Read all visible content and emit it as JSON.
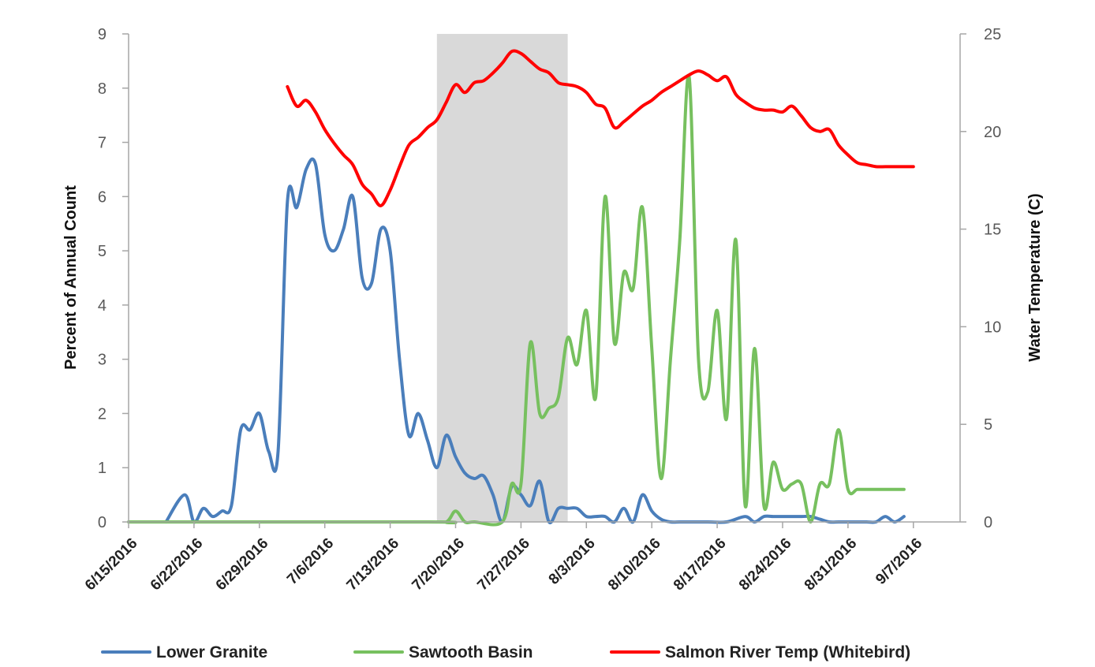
{
  "chart_data": {
    "type": "line",
    "xlabel": "",
    "ylabel_left": "Percent of  Annual Count",
    "ylabel_right": "Water Temperature (C)",
    "ylim_left": [
      0,
      9
    ],
    "ylim_right": [
      0,
      25
    ],
    "xlim": [
      "6/15/2016",
      "9/12/2016"
    ],
    "y_left_ticks": [
      "0",
      "1",
      "2",
      "3",
      "4",
      "5",
      "6",
      "7",
      "8",
      "9"
    ],
    "y_right_ticks": [
      "0",
      "5",
      "10",
      "15",
      "20",
      "25"
    ],
    "x_ticks": [
      "6/15/2016",
      "6/22/2016",
      "6/29/2016",
      "7/6/2016",
      "7/13/2016",
      "7/20/2016",
      "7/27/2016",
      "8/3/2016",
      "8/10/2016",
      "8/17/2016",
      "8/24/2016",
      "8/31/2016",
      "9/7/2016"
    ],
    "grid": false,
    "legend_position": "bottom",
    "shaded_band": {
      "from": "7/18/2016",
      "to": "8/1/2016",
      "color": "#d9d9d9"
    },
    "series": [
      {
        "name": "Lower Granite",
        "color": "#4a7ebb",
        "axis": "left",
        "x": [
          "6/19/2016",
          "6/21/2016",
          "6/22/2016",
          "6/23/2016",
          "6/24/2016",
          "6/25/2016",
          "6/26/2016",
          "6/27/2016",
          "6/28/2016",
          "6/29/2016",
          "6/30/2016",
          "7/1/2016",
          "7/2/2016",
          "7/3/2016",
          "7/4/2016",
          "7/5/2016",
          "7/6/2016",
          "7/7/2016",
          "7/8/2016",
          "7/9/2016",
          "7/10/2016",
          "7/11/2016",
          "7/12/2016",
          "7/13/2016",
          "7/14/2016",
          "7/15/2016",
          "7/16/2016",
          "7/17/2016",
          "7/18/2016",
          "7/19/2016",
          "7/20/2016",
          "7/21/2016",
          "7/22/2016",
          "7/23/2016",
          "7/24/2016",
          "7/25/2016",
          "7/26/2016",
          "7/27/2016",
          "7/28/2016",
          "7/29/2016",
          "7/30/2016",
          "7/31/2016",
          "8/1/2016",
          "8/2/2016",
          "8/3/2016",
          "8/4/2016",
          "8/5/2016",
          "8/6/2016",
          "8/7/2016",
          "8/8/2016",
          "8/9/2016",
          "8/10/2016",
          "8/11/2016",
          "8/12/2016",
          "8/13/2016",
          "8/14/2016",
          "8/16/2016",
          "8/18/2016",
          "8/20/2016",
          "8/21/2016",
          "8/22/2016",
          "8/23/2016",
          "8/24/2016",
          "8/26/2016",
          "8/27/2016",
          "8/28/2016",
          "8/29/2016",
          "8/30/2016",
          "8/31/2016",
          "9/1/2016",
          "9/2/2016",
          "9/3/2016",
          "9/4/2016",
          "9/5/2016",
          "9/6/2016"
        ],
        "values": [
          0,
          0.5,
          0,
          0.25,
          0.1,
          0.2,
          0.3,
          1.7,
          1.7,
          2.0,
          1.3,
          1.3,
          5.9,
          5.8,
          6.5,
          6.6,
          5.3,
          5.0,
          5.4,
          6.0,
          4.5,
          4.4,
          5.4,
          5.0,
          3.0,
          1.6,
          2.0,
          1.5,
          1.0,
          1.6,
          1.2,
          0.9,
          0.8,
          0.85,
          0.5,
          0,
          0.65,
          0.5,
          0.3,
          0.75,
          0,
          0.25,
          0.25,
          0.25,
          0.1,
          0.1,
          0.1,
          0,
          0.25,
          0,
          0.5,
          0.2,
          0.05,
          0,
          0,
          0,
          0,
          0,
          0.1,
          0,
          0.1,
          0.1,
          0.1,
          0.1,
          0.1,
          0.05,
          0,
          0,
          0,
          0,
          0,
          0,
          0.1,
          0,
          0.1
        ]
      },
      {
        "name": "Sawtooth Basin",
        "color": "#77c05f",
        "axis": "left",
        "x": [
          "6/15/2016",
          "7/17/2016",
          "7/19/2016",
          "7/20/2016",
          "7/21/2016",
          "7/22/2016",
          "7/25/2016",
          "7/26/2016",
          "7/27/2016",
          "7/28/2016",
          "7/29/2016",
          "7/30/2016",
          "7/31/2016",
          "8/1/2016",
          "8/2/2016",
          "8/3/2016",
          "8/4/2016",
          "8/5/2016",
          "8/6/2016",
          "8/7/2016",
          "8/8/2016",
          "8/9/2016",
          "8/10/2016",
          "8/11/2016",
          "8/12/2016",
          "8/13/2016",
          "8/14/2016",
          "8/15/2016",
          "8/16/2016",
          "8/17/2016",
          "8/18/2016",
          "8/19/2016",
          "8/20/2016",
          "8/21/2016",
          "8/22/2016",
          "8/23/2016",
          "8/24/2016",
          "8/25/2016",
          "8/26/2016",
          "8/27/2016",
          "8/28/2016",
          "8/29/2016",
          "8/30/2016",
          "8/31/2016",
          "9/1/2016",
          "9/2/2016",
          "9/3/2016",
          "9/4/2016",
          "9/5/2016",
          "9/6/2016"
        ],
        "values": [
          0,
          0,
          0,
          0.2,
          0,
          0,
          0,
          0.7,
          0.7,
          3.3,
          2.0,
          2.1,
          2.3,
          3.4,
          2.9,
          3.9,
          2.3,
          6.0,
          3.3,
          4.6,
          4.3,
          5.8,
          3.2,
          0.8,
          3.0,
          5.2,
          8.2,
          3.0,
          2.4,
          3.9,
          1.9,
          5.2,
          0.3,
          3.2,
          0.3,
          1.1,
          0.6,
          0.7,
          0.7,
          0,
          0.7,
          0.7,
          1.7,
          0.6,
          0.6,
          0.6,
          0.6,
          0.6,
          0.6,
          0.6
        ]
      },
      {
        "name": "Salmon River Temp (Whitebird)",
        "color": "#ff0000",
        "axis": "right",
        "x": [
          "7/2/2016",
          "7/3/2016",
          "7/4/2016",
          "7/5/2016",
          "7/6/2016",
          "7/7/2016",
          "7/8/2016",
          "7/9/2016",
          "7/10/2016",
          "7/11/2016",
          "7/12/2016",
          "7/13/2016",
          "7/14/2016",
          "7/15/2016",
          "7/16/2016",
          "7/17/2016",
          "7/18/2016",
          "7/19/2016",
          "7/20/2016",
          "7/21/2016",
          "7/22/2016",
          "7/23/2016",
          "7/24/2016",
          "7/25/2016",
          "7/26/2016",
          "7/27/2016",
          "7/28/2016",
          "7/29/2016",
          "7/30/2016",
          "7/31/2016",
          "8/1/2016",
          "8/2/2016",
          "8/3/2016",
          "8/4/2016",
          "8/5/2016",
          "8/6/2016",
          "8/7/2016",
          "8/8/2016",
          "8/9/2016",
          "8/10/2016",
          "8/11/2016",
          "8/12/2016",
          "8/13/2016",
          "8/14/2016",
          "8/15/2016",
          "8/16/2016",
          "8/17/2016",
          "8/18/2016",
          "8/19/2016",
          "8/20/2016",
          "8/21/2016",
          "8/22/2016",
          "8/23/2016",
          "8/24/2016",
          "8/25/2016",
          "8/26/2016",
          "8/27/2016",
          "8/28/2016",
          "8/29/2016",
          "8/30/2016",
          "8/31/2016",
          "9/1/2016",
          "9/2/2016",
          "9/3/2016",
          "9/4/2016",
          "9/5/2016",
          "9/6/2016",
          "9/7/2016"
        ],
        "values": [
          22.3,
          21.3,
          21.6,
          21.0,
          20.1,
          19.4,
          18.8,
          18.3,
          17.3,
          16.8,
          16.2,
          17.0,
          18.2,
          19.3,
          19.7,
          20.2,
          20.6,
          21.5,
          22.4,
          22.0,
          22.5,
          22.6,
          23.0,
          23.5,
          24.1,
          24.0,
          23.6,
          23.2,
          23.0,
          22.5,
          22.4,
          22.3,
          22.0,
          21.4,
          21.2,
          20.2,
          20.5,
          20.9,
          21.3,
          21.6,
          22.0,
          22.3,
          22.6,
          22.9,
          23.1,
          22.9,
          22.6,
          22.8,
          21.9,
          21.5,
          21.2,
          21.1,
          21.1,
          21.0,
          21.3,
          20.8,
          20.2,
          20.0,
          20.1,
          19.3,
          18.8,
          18.4,
          18.3,
          18.2,
          18.2,
          18.2,
          18.2,
          18.2
        ]
      }
    ]
  }
}
